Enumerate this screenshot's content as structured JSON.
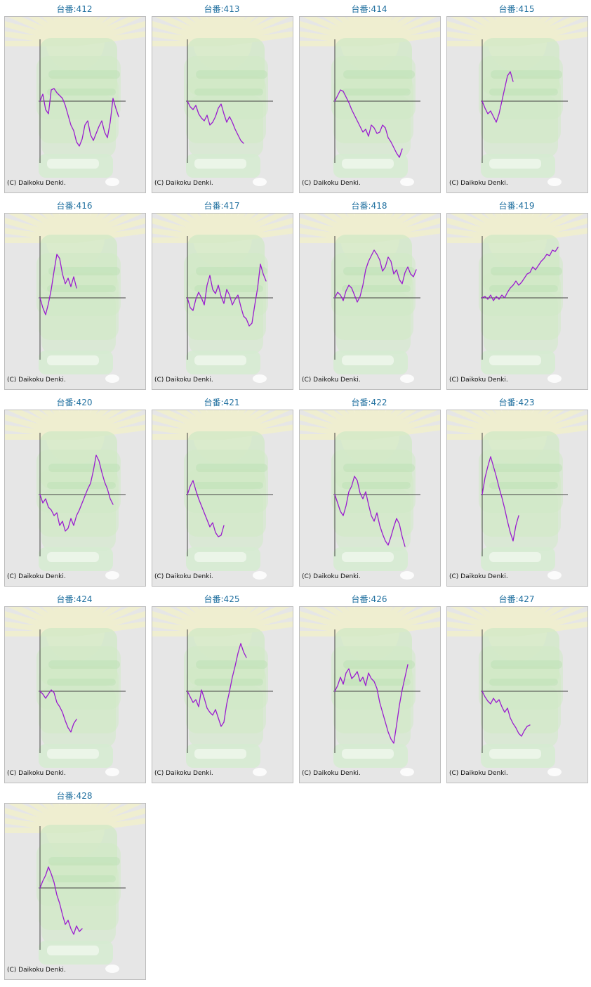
{
  "colors": {
    "title": "#1f6f9f",
    "graph_line": "#9a1ccf",
    "axis": "#444444",
    "card_bg": "#e6e6e6",
    "card_border": "#bdbdbd",
    "background_art": "#cfe9c4"
  },
  "copyright_text": "(C) Daikoku Denki.",
  "machines": [
    {
      "title": "台番:412",
      "chart_data": {
        "type": "line",
        "y": [
          0,
          10,
          -12,
          -18,
          16,
          18,
          12,
          8,
          4,
          -6,
          -20,
          -34,
          -42,
          -58,
          -64,
          -54,
          -34,
          -28,
          -48,
          -56,
          -46,
          -36,
          -28,
          -44,
          -52,
          -30,
          4,
          -10,
          -22
        ]
      }
    },
    {
      "title": "台番:413",
      "chart_data": {
        "type": "line",
        "y": [
          0,
          -8,
          -12,
          -6,
          -18,
          -24,
          -28,
          -20,
          -34,
          -30,
          -22,
          -10,
          -4,
          -18,
          -30,
          -22,
          -30,
          -40,
          -48,
          -56,
          -60
        ]
      }
    },
    {
      "title": "台番:414",
      "chart_data": {
        "type": "line",
        "y": [
          0,
          8,
          16,
          14,
          6,
          -2,
          -12,
          -20,
          -28,
          -36,
          -44,
          -40,
          -50,
          -34,
          -38,
          -46,
          -44,
          -34,
          -38,
          -52,
          -58,
          -66,
          -74,
          -80,
          -68
        ]
      }
    },
    {
      "title": "台番:415",
      "chart_data": {
        "type": "line",
        "y": [
          0,
          -10,
          -18,
          -14,
          -22,
          -30,
          -18,
          0,
          18,
          36,
          42,
          28
        ]
      }
    },
    {
      "title": "台番:416",
      "chart_data": {
        "type": "line",
        "y": [
          0,
          -14,
          -24,
          -8,
          12,
          38,
          62,
          56,
          34,
          20,
          28,
          16,
          30,
          14
        ]
      }
    },
    {
      "title": "台番:417",
      "chart_data": {
        "type": "line",
        "y": [
          0,
          -14,
          -18,
          -2,
          8,
          0,
          -10,
          18,
          32,
          12,
          6,
          18,
          2,
          -8,
          12,
          4,
          -10,
          -2,
          4,
          -12,
          -26,
          -30,
          -40,
          -36,
          -10,
          14,
          48,
          34,
          24
        ]
      }
    },
    {
      "title": "台番:418",
      "chart_data": {
        "type": "line",
        "y": [
          0,
          8,
          4,
          -4,
          10,
          18,
          14,
          4,
          -6,
          2,
          18,
          40,
          52,
          60,
          68,
          62,
          54,
          38,
          44,
          58,
          52,
          34,
          40,
          26,
          20,
          36,
          44,
          34,
          30,
          40
        ]
      }
    },
    {
      "title": "台番:419",
      "chart_data": {
        "type": "line",
        "y": [
          0,
          2,
          -2,
          4,
          -4,
          2,
          -2,
          4,
          0,
          8,
          14,
          18,
          24,
          18,
          22,
          28,
          34,
          36,
          44,
          40,
          46,
          52,
          56,
          62,
          60,
          68,
          66,
          72
        ]
      }
    },
    {
      "title": "台番:420",
      "chart_data": {
        "type": "line",
        "y": [
          0,
          -12,
          -6,
          -18,
          -22,
          -30,
          -26,
          -44,
          -38,
          -52,
          -48,
          -34,
          -44,
          -30,
          -22,
          -12,
          -2,
          8,
          16,
          34,
          56,
          48,
          32,
          18,
          8,
          -6,
          -14
        ]
      }
    },
    {
      "title": "台番:421",
      "chart_data": {
        "type": "line",
        "y": [
          0,
          12,
          20,
          6,
          -6,
          -16,
          -26,
          -36,
          -46,
          -40,
          -54,
          -60,
          -58,
          -44
        ]
      }
    },
    {
      "title": "台番:422",
      "chart_data": {
        "type": "line",
        "y": [
          0,
          -12,
          -24,
          -30,
          -16,
          4,
          12,
          26,
          20,
          2,
          -6,
          4,
          -14,
          -30,
          -38,
          -26,
          -44,
          -56,
          -66,
          -72,
          -60,
          -46,
          -34,
          -42,
          -60,
          -74
        ]
      }
    },
    {
      "title": "台番:423",
      "chart_data": {
        "type": "line",
        "y": [
          0,
          24,
          40,
          54,
          40,
          26,
          10,
          -4,
          -20,
          -38,
          -54,
          -66,
          -44,
          -30
        ]
      }
    },
    {
      "title": "台番:424",
      "chart_data": {
        "type": "line",
        "y": [
          0,
          -4,
          -10,
          -4,
          2,
          -2,
          -16,
          -22,
          -30,
          -42,
          -52,
          -58,
          -46,
          -40
        ]
      }
    },
    {
      "title": "台番:425",
      "chart_data": {
        "type": "line",
        "y": [
          0,
          -8,
          -16,
          -12,
          -22,
          2,
          -10,
          -24,
          -30,
          -34,
          -26,
          -38,
          -50,
          -44,
          -18,
          0,
          20,
          36,
          54,
          68,
          56,
          48
        ]
      }
    },
    {
      "title": "台番:426",
      "chart_data": {
        "type": "line",
        "y": [
          0,
          8,
          20,
          10,
          26,
          32,
          18,
          22,
          28,
          14,
          20,
          8,
          26,
          18,
          14,
          4,
          -16,
          -30,
          -44,
          -58,
          -68,
          -74,
          -48,
          -20,
          2,
          20,
          38
        ]
      }
    },
    {
      "title": "台番:427",
      "chart_data": {
        "type": "line",
        "y": [
          0,
          -8,
          -14,
          -18,
          -10,
          -16,
          -12,
          -22,
          -30,
          -24,
          -38,
          -46,
          -52,
          -60,
          -64,
          -56,
          -50,
          -48
        ]
      }
    },
    {
      "title": "台番:428",
      "chart_data": {
        "type": "line",
        "y": [
          0,
          10,
          18,
          30,
          20,
          8,
          -10,
          -22,
          -38,
          -52,
          -46,
          -58,
          -66,
          -54,
          -62,
          -58
        ]
      }
    }
  ]
}
